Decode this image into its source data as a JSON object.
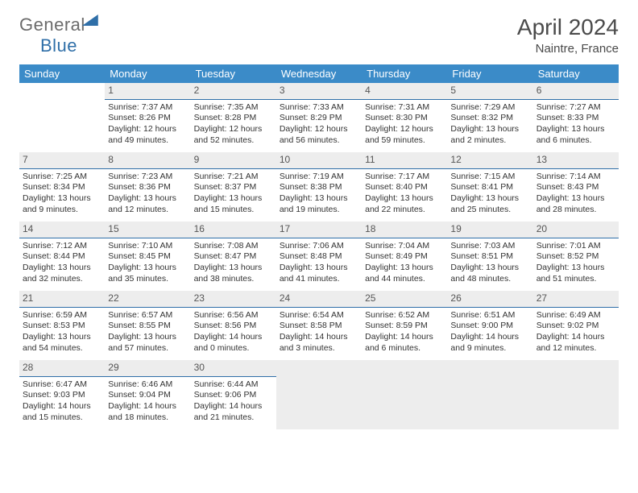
{
  "logo": {
    "part1": "General",
    "part2": "Blue"
  },
  "header": {
    "title": "April 2024",
    "location": "Naintre, France"
  },
  "weekdays": [
    "Sunday",
    "Monday",
    "Tuesday",
    "Wednesday",
    "Thursday",
    "Friday",
    "Saturday"
  ],
  "style": {
    "header_bg": "#3b8bc8",
    "header_fg": "#ffffff",
    "daynum_bg": "#ededed",
    "daynum_border": "#2f6fa8",
    "text_color": "#333333",
    "title_color": "#4a4a4a"
  },
  "weeks": [
    [
      {
        "n": "",
        "empty": true
      },
      {
        "n": "1",
        "sunrise": "7:37 AM",
        "sunset": "8:26 PM",
        "dl": "12 hours and 49 minutes."
      },
      {
        "n": "2",
        "sunrise": "7:35 AM",
        "sunset": "8:28 PM",
        "dl": "12 hours and 52 minutes."
      },
      {
        "n": "3",
        "sunrise": "7:33 AM",
        "sunset": "8:29 PM",
        "dl": "12 hours and 56 minutes."
      },
      {
        "n": "4",
        "sunrise": "7:31 AM",
        "sunset": "8:30 PM",
        "dl": "12 hours and 59 minutes."
      },
      {
        "n": "5",
        "sunrise": "7:29 AM",
        "sunset": "8:32 PM",
        "dl": "13 hours and 2 minutes."
      },
      {
        "n": "6",
        "sunrise": "7:27 AM",
        "sunset": "8:33 PM",
        "dl": "13 hours and 6 minutes."
      }
    ],
    [
      {
        "n": "7",
        "sunrise": "7:25 AM",
        "sunset": "8:34 PM",
        "dl": "13 hours and 9 minutes."
      },
      {
        "n": "8",
        "sunrise": "7:23 AM",
        "sunset": "8:36 PM",
        "dl": "13 hours and 12 minutes."
      },
      {
        "n": "9",
        "sunrise": "7:21 AM",
        "sunset": "8:37 PM",
        "dl": "13 hours and 15 minutes."
      },
      {
        "n": "10",
        "sunrise": "7:19 AM",
        "sunset": "8:38 PM",
        "dl": "13 hours and 19 minutes."
      },
      {
        "n": "11",
        "sunrise": "7:17 AM",
        "sunset": "8:40 PM",
        "dl": "13 hours and 22 minutes."
      },
      {
        "n": "12",
        "sunrise": "7:15 AM",
        "sunset": "8:41 PM",
        "dl": "13 hours and 25 minutes."
      },
      {
        "n": "13",
        "sunrise": "7:14 AM",
        "sunset": "8:43 PM",
        "dl": "13 hours and 28 minutes."
      }
    ],
    [
      {
        "n": "14",
        "sunrise": "7:12 AM",
        "sunset": "8:44 PM",
        "dl": "13 hours and 32 minutes."
      },
      {
        "n": "15",
        "sunrise": "7:10 AM",
        "sunset": "8:45 PM",
        "dl": "13 hours and 35 minutes."
      },
      {
        "n": "16",
        "sunrise": "7:08 AM",
        "sunset": "8:47 PM",
        "dl": "13 hours and 38 minutes."
      },
      {
        "n": "17",
        "sunrise": "7:06 AM",
        "sunset": "8:48 PM",
        "dl": "13 hours and 41 minutes."
      },
      {
        "n": "18",
        "sunrise": "7:04 AM",
        "sunset": "8:49 PM",
        "dl": "13 hours and 44 minutes."
      },
      {
        "n": "19",
        "sunrise": "7:03 AM",
        "sunset": "8:51 PM",
        "dl": "13 hours and 48 minutes."
      },
      {
        "n": "20",
        "sunrise": "7:01 AM",
        "sunset": "8:52 PM",
        "dl": "13 hours and 51 minutes."
      }
    ],
    [
      {
        "n": "21",
        "sunrise": "6:59 AM",
        "sunset": "8:53 PM",
        "dl": "13 hours and 54 minutes."
      },
      {
        "n": "22",
        "sunrise": "6:57 AM",
        "sunset": "8:55 PM",
        "dl": "13 hours and 57 minutes."
      },
      {
        "n": "23",
        "sunrise": "6:56 AM",
        "sunset": "8:56 PM",
        "dl": "14 hours and 0 minutes."
      },
      {
        "n": "24",
        "sunrise": "6:54 AM",
        "sunset": "8:58 PM",
        "dl": "14 hours and 3 minutes."
      },
      {
        "n": "25",
        "sunrise": "6:52 AM",
        "sunset": "8:59 PM",
        "dl": "14 hours and 6 minutes."
      },
      {
        "n": "26",
        "sunrise": "6:51 AM",
        "sunset": "9:00 PM",
        "dl": "14 hours and 9 minutes."
      },
      {
        "n": "27",
        "sunrise": "6:49 AM",
        "sunset": "9:02 PM",
        "dl": "14 hours and 12 minutes."
      }
    ],
    [
      {
        "n": "28",
        "sunrise": "6:47 AM",
        "sunset": "9:03 PM",
        "dl": "14 hours and 15 minutes."
      },
      {
        "n": "29",
        "sunrise": "6:46 AM",
        "sunset": "9:04 PM",
        "dl": "14 hours and 18 minutes."
      },
      {
        "n": "30",
        "sunrise": "6:44 AM",
        "sunset": "9:06 PM",
        "dl": "14 hours and 21 minutes."
      },
      {
        "n": "",
        "trailing": true
      },
      {
        "n": "",
        "trailing": true
      },
      {
        "n": "",
        "trailing": true
      },
      {
        "n": "",
        "trailing": true
      }
    ]
  ],
  "labels": {
    "sunrise": "Sunrise: ",
    "sunset": "Sunset: ",
    "daylight": "Daylight: "
  }
}
